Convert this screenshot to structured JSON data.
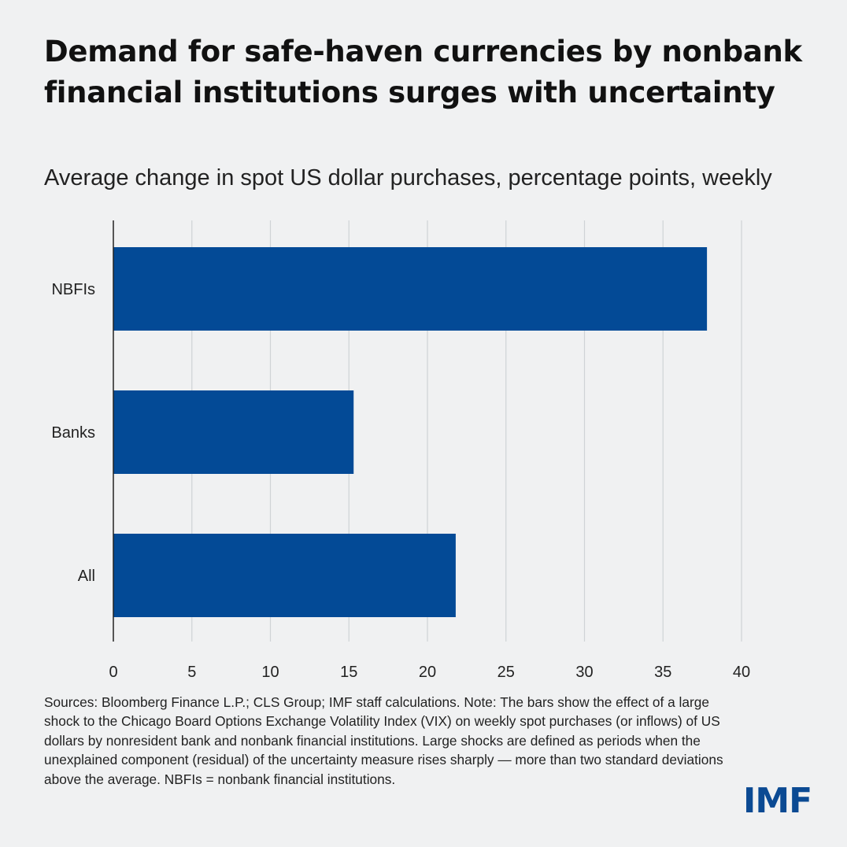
{
  "title": "Demand for safe-haven currencies by nonbank financial institutions surges with uncertainty",
  "subtitle": "Average change in spot US dollar purchases, percentage points, weekly",
  "chart_data": {
    "type": "bar",
    "orientation": "horizontal",
    "categories": [
      "NBFIs",
      "Banks",
      "All"
    ],
    "values": [
      37.8,
      15.3,
      21.8
    ],
    "xlim": [
      0,
      40
    ],
    "xticks": [
      0,
      5,
      10,
      15,
      20,
      25,
      30,
      35,
      40
    ],
    "grid": true,
    "legend": "none",
    "bar_color": "#034a96"
  },
  "sources": "Sources: Bloomberg Finance L.P.; CLS Group; IMF staff calculations. Note: The bars show the effect of a large shock to the Chicago Board Options Exchange Volatility Index (VIX) on weekly spot purchases (or inflows) of US dollars by nonresident bank and nonbank financial institutions. Large shocks are defined as periods when the unexplained component (residual) of the uncertainty measure rises sharply — more than two standard deviations above the average. NBFIs = nonbank financial institutions.",
  "logo_text": "IMF",
  "colors": {
    "background": "#f0f1f2",
    "bar": "#034a96",
    "gridline": "#cfd3d6",
    "axis": "#222222",
    "logo": "#0b4a93"
  }
}
